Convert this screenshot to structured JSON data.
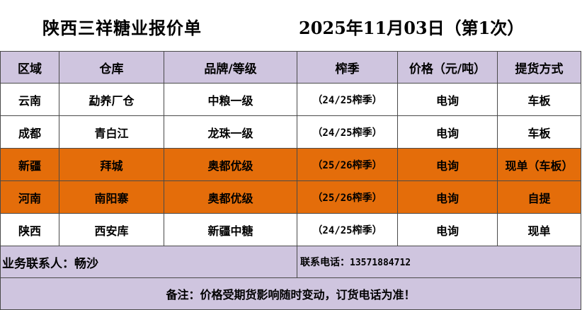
{
  "header": {
    "title": "陕西三祥糖业报价单",
    "date_line": "2025年11月03日（第1次）"
  },
  "columns": [
    "区域",
    "仓库",
    "品牌/等级",
    "榨季",
    "价格（元/吨）",
    "提货方式"
  ],
  "rows": [
    {
      "region": "云南",
      "warehouse": "勐养厂仓",
      "brand": "中粮一级",
      "season": "（24/25榨季）",
      "price": "电询",
      "pickup": "车板",
      "highlight": false
    },
    {
      "region": "成都",
      "warehouse": "青白江",
      "brand": "龙珠一级",
      "season": "（24/25榨季）",
      "price": "电询",
      "pickup": "车板",
      "highlight": false
    },
    {
      "region": "新疆",
      "warehouse": "拜城",
      "brand": "奥都优级",
      "season": "（25/26榨季）",
      "price": "电询",
      "pickup": "现单（车板）",
      "highlight": true
    },
    {
      "region": "河南",
      "warehouse": "南阳寨",
      "brand": "奥都优级",
      "season": "（25/26榨季）",
      "price": "电询",
      "pickup": "自提",
      "highlight": true
    },
    {
      "region": "陕西",
      "warehouse": "西安库",
      "brand": "新疆中糖",
      "season": "（24/25榨季）",
      "price": "电询",
      "pickup": "现单",
      "highlight": false
    }
  ],
  "contact": {
    "person": "业务联系人：畅沙",
    "phone_label": "联系电话：",
    "phone": "13571884712"
  },
  "note": "备注：价格受期货影响随时变动，订货电话为准！",
  "colors": {
    "header_bg": "#cfc5df",
    "highlight_bg": "#e46d0a",
    "border": "#4a4a4a"
  }
}
